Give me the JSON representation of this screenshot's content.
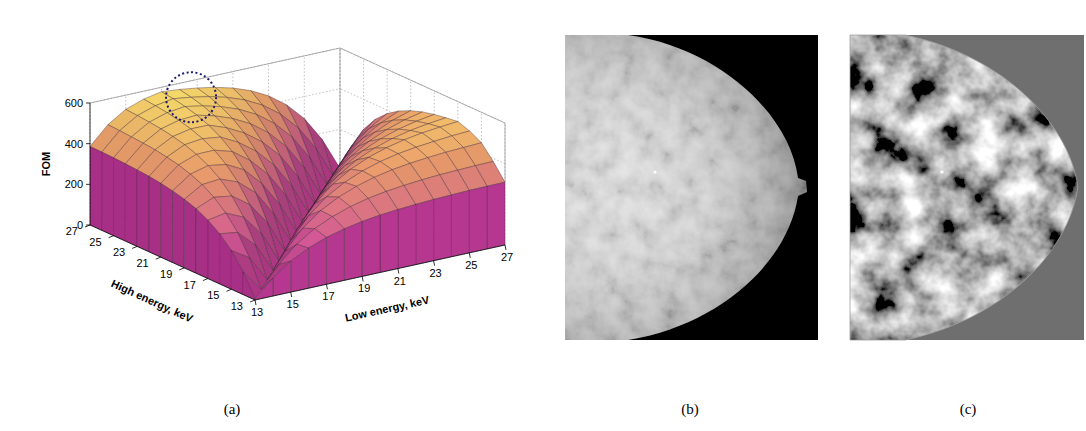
{
  "chart_data": {
    "type": "surface",
    "panel_label": "(a)",
    "x_label": "Low energy, keV",
    "y_label": "High energy, keV",
    "z_label": "FOM",
    "x": [
      13,
      14,
      15,
      16,
      17,
      18,
      19,
      20,
      21,
      22,
      23,
      24,
      25,
      26,
      27
    ],
    "y": [
      13,
      14,
      15,
      16,
      17,
      18,
      19,
      20,
      21,
      22,
      23,
      24,
      25,
      26,
      27
    ],
    "z": [
      [
        8,
        88,
        152,
        197,
        230,
        253,
        270,
        282,
        290,
        296,
        301,
        304,
        307,
        308,
        309
      ],
      [
        111,
        8,
        110,
        190,
        247,
        287,
        317,
        338,
        353,
        363,
        371,
        377,
        380,
        383,
        385
      ],
      [
        190,
        136,
        8,
        129,
        223,
        290,
        337,
        371,
        396,
        414,
        426,
        435,
        442,
        446,
        450
      ],
      [
        246,
        234,
        153,
        8,
        140,
        240,
        313,
        364,
        401,
        428,
        447,
        460,
        469,
        477,
        482
      ],
      [
        287,
        303,
        263,
        163,
        8,
        147,
        253,
        329,
        383,
        422,
        450,
        470,
        484,
        494,
        502
      ],
      [
        317,
        354,
        341,
        280,
        170,
        8,
        147,
        253,
        329,
        383,
        422,
        450,
        470,
        484,
        494
      ],
      [
        337,
        390,
        398,
        364,
        292,
        170,
        8,
        147,
        253,
        329,
        383,
        422,
        450,
        470,
        484
      ],
      [
        352,
        415,
        438,
        424,
        379,
        292,
        170,
        8,
        147,
        253,
        329,
        383,
        422,
        450,
        470
      ],
      [
        363,
        434,
        467,
        468,
        442,
        379,
        292,
        170,
        8,
        147,
        253,
        329,
        383,
        422,
        450
      ],
      [
        371,
        446,
        488,
        498,
        487,
        442,
        379,
        292,
        170,
        8,
        147,
        253,
        329,
        383,
        422
      ],
      [
        376,
        456,
        502,
        520,
        519,
        487,
        442,
        379,
        292,
        170,
        8,
        147,
        253,
        329,
        383
      ],
      [
        380,
        462,
        513,
        536,
        542,
        519,
        487,
        442,
        379,
        292,
        170,
        8,
        147,
        253,
        329
      ],
      [
        383,
        467,
        520,
        547,
        558,
        542,
        519,
        487,
        442,
        379,
        292,
        170,
        8,
        147,
        253
      ],
      [
        385,
        471,
        526,
        555,
        570,
        558,
        542,
        519,
        487,
        442,
        379,
        292,
        170,
        8,
        147
      ],
      [
        386,
        474,
        530,
        561,
        578,
        570,
        558,
        542,
        519,
        487,
        442,
        379,
        292,
        170,
        8
      ]
    ],
    "xlim": [
      13,
      27
    ],
    "ylim": [
      13,
      27
    ],
    "zlim": [
      0,
      600
    ],
    "xticks": [
      13,
      15,
      17,
      19,
      21,
      23,
      25,
      27
    ],
    "yticks": [
      13,
      15,
      17,
      19,
      21,
      23,
      25,
      27
    ],
    "zticks": [
      0,
      200,
      400,
      600
    ],
    "grid": true,
    "highlight": {
      "x": 18,
      "y": 26
    }
  },
  "images": [
    {
      "panel_label": "(b)"
    },
    {
      "panel_label": "(c)"
    }
  ]
}
